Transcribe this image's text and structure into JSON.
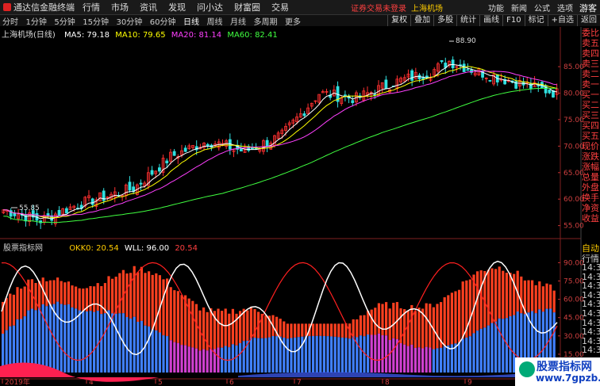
{
  "app": {
    "name": "通达信金融终端",
    "menu": [
      "行情",
      "市场",
      "资讯",
      "发现",
      "问小达",
      "财富圈",
      "交易"
    ],
    "notice": "证券交易未登录",
    "notice_stock": "上海机场",
    "right_menu": [
      "功能",
      "新闻",
      "公式",
      "选项"
    ],
    "guest": "游客"
  },
  "toolbar": {
    "periods": [
      "分时",
      "1分钟",
      "5分钟",
      "15分钟",
      "30分钟",
      "60分钟",
      "日线",
      "周线",
      "月线",
      "多周期",
      "更多"
    ],
    "active": "日线",
    "right": [
      "复权",
      "叠加",
      "多股",
      "统计",
      "画线",
      "F10",
      "标记",
      "+自选",
      "返回"
    ]
  },
  "chart": {
    "stock": "上海机场(日线)",
    "ma": [
      {
        "label": "MA5: 79.18",
        "color": "#ffffff"
      },
      {
        "label": "MA10: 79.65",
        "color": "#ffff00"
      },
      {
        "label": "MA20: 81.14",
        "color": "#ff40ff"
      },
      {
        "label": "MA60: 82.41",
        "color": "#40ff40"
      }
    ],
    "price_ticks": [
      "85.00",
      "80.00",
      "75.00",
      "70.00",
      "65.00",
      "60.00",
      "55.00"
    ],
    "high_label": "88.90",
    "low_label": "55.85"
  },
  "indicator": {
    "name": "股票指标网",
    "okk": "OKK0: 20.54",
    "wll": "WLL: 96.00",
    "val": "20.54",
    "ticks": [
      "90.00",
      "75.00",
      "60.00",
      "45.00",
      "30.00",
      "15.00"
    ]
  },
  "xaxis": {
    "labels": [
      "2019年",
      "4",
      "5",
      "6",
      "7",
      "8",
      "9"
    ]
  },
  "side": {
    "quote_labels": [
      "委比",
      "卖五",
      "卖四",
      "卖三",
      "卖二",
      "卖一",
      "买一",
      "买二",
      "买三",
      "买四",
      "买五",
      "现价",
      "涨跌",
      "涨幅",
      "总量",
      "外盘",
      "换手",
      "净资",
      "收益"
    ],
    "title": "自动",
    "sub": "行情",
    "times": [
      "14:30",
      "14:30",
      "14:30",
      "14:30",
      "14:30",
      "14:30",
      "14:30",
      "14:30",
      "14:31",
      "14:31"
    ]
  },
  "watermark": {
    "line1": "股票指标网",
    "line2": "www.7gpzb.com"
  },
  "chart_data": {
    "type": "candlestick",
    "series": [
      {
        "name": "MA5"
      },
      {
        "name": "MA10"
      },
      {
        "name": "MA20"
      },
      {
        "name": "MA60"
      }
    ],
    "ylim": [
      53,
      91
    ]
  }
}
